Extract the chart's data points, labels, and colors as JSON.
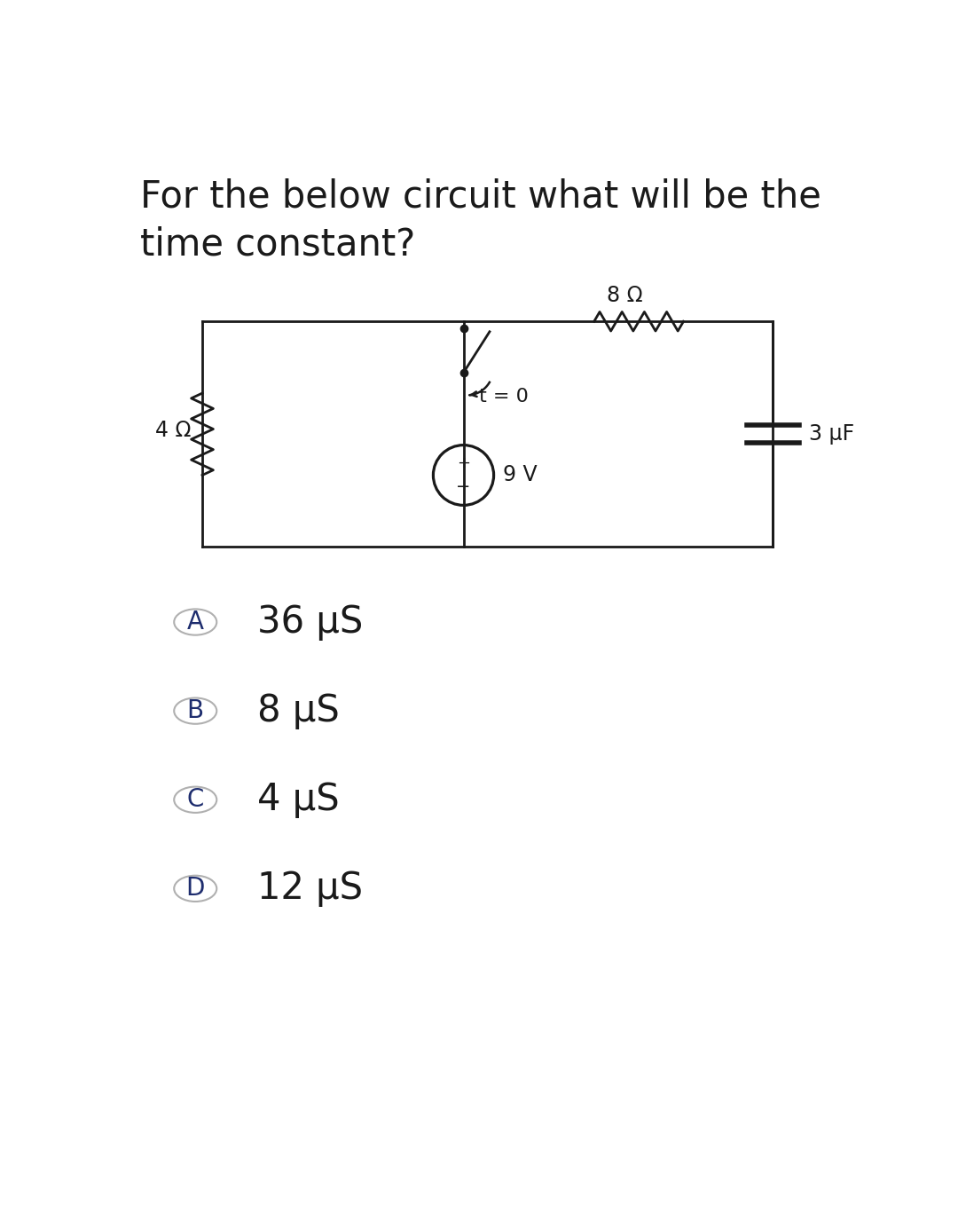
{
  "title_line1": "For the below circuit what will be the",
  "title_line2": "time constant?",
  "title_fontsize": 30,
  "bg_color": "#ffffff",
  "circuit_color": "#1a1a1a",
  "text_color": "#1a1a1a",
  "label_color": "#1e2d6e",
  "options": [
    {
      "label": "A",
      "text": "36 μS"
    },
    {
      "label": "B",
      "text": "8 μS"
    },
    {
      "label": "C",
      "text": "4 μS"
    },
    {
      "label": "D",
      "text": "12 μS"
    }
  ],
  "resistor_4_label": "4 Ω",
  "resistor_8_label": "8 Ω",
  "capacitor_label": "3 μF",
  "voltage_label": "9 V",
  "switch_label": "t = 0",
  "option_font_size": 30,
  "circuit_font_size": 17,
  "line_width": 2.0
}
